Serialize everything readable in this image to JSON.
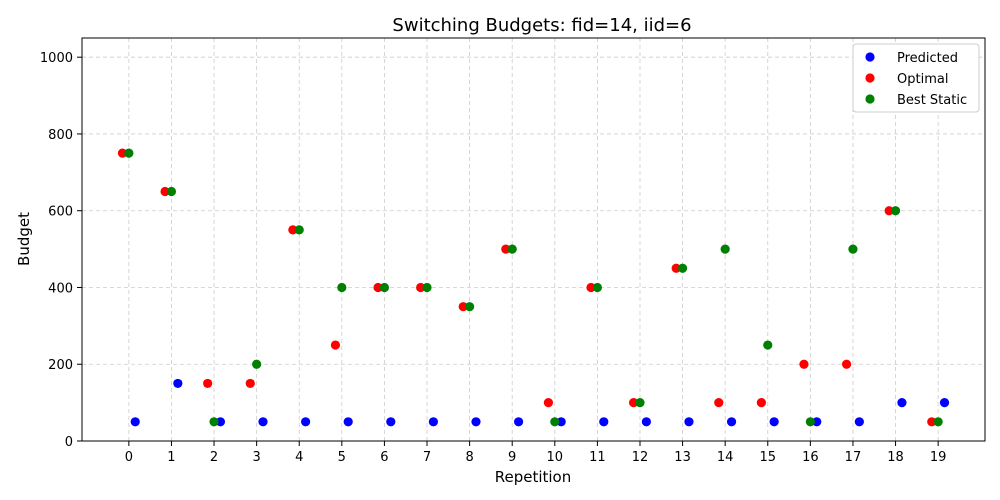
{
  "chart_data": {
    "type": "scatter",
    "title": "Switching Budgets: fid=14, iid=6",
    "xlabel": "Repetition",
    "ylabel": "Budget",
    "x_ticks": [
      0,
      1,
      2,
      3,
      4,
      5,
      6,
      7,
      8,
      9,
      10,
      11,
      12,
      13,
      14,
      15,
      16,
      17,
      18,
      19
    ],
    "y_ticks": [
      0,
      200,
      400,
      600,
      800,
      1000
    ],
    "xlim": [
      -1.1,
      20.1
    ],
    "ylim": [
      0,
      1050
    ],
    "grid": true,
    "legend_position": "top-right",
    "series": [
      {
        "name": "Predicted",
        "color": "#0000ff",
        "offset": 0.15,
        "values": [
          50,
          150,
          50,
          50,
          50,
          50,
          50,
          50,
          50,
          50,
          50,
          50,
          50,
          50,
          50,
          50,
          50,
          50,
          100,
          100
        ]
      },
      {
        "name": "Optimal",
        "color": "#ff0000",
        "offset": -0.15,
        "values": [
          750,
          650,
          150,
          150,
          550,
          250,
          400,
          400,
          350,
          500,
          100,
          400,
          100,
          450,
          100,
          100,
          200,
          200,
          600,
          50
        ]
      },
      {
        "name": "Best Static",
        "color": "#008000",
        "offset": 0,
        "values": [
          750,
          650,
          50,
          200,
          550,
          400,
          400,
          400,
          350,
          500,
          50,
          400,
          100,
          450,
          500,
          250,
          50,
          500,
          600,
          50
        ]
      }
    ]
  }
}
